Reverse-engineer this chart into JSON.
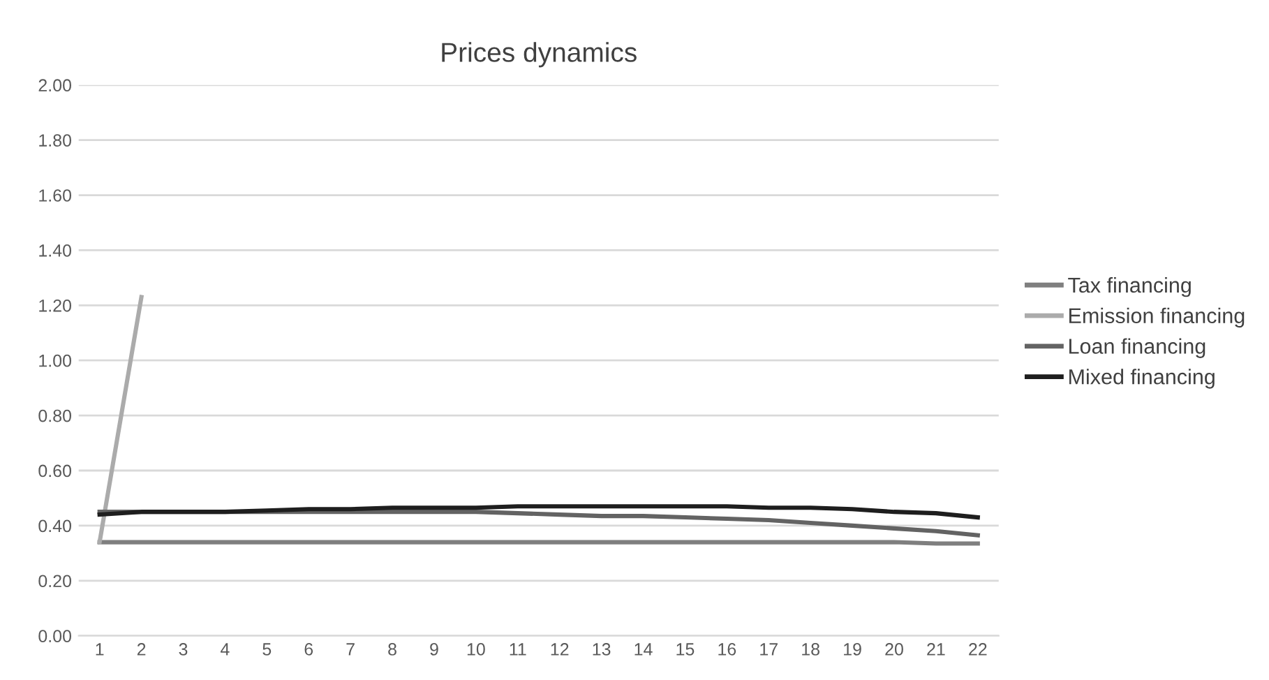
{
  "chart_data": {
    "type": "line",
    "title": "Prices dynamics",
    "categories": [
      "1",
      "2",
      "3",
      "4",
      "5",
      "6",
      "7",
      "8",
      "9",
      "10",
      "11",
      "12",
      "13",
      "14",
      "15",
      "16",
      "17",
      "18",
      "19",
      "20",
      "21",
      "22"
    ],
    "series": [
      {
        "name": "Tax financing",
        "color": "#7f7f7f",
        "values": [
          0.34,
          0.34,
          0.34,
          0.34,
          0.34,
          0.34,
          0.34,
          0.34,
          0.34,
          0.34,
          0.34,
          0.34,
          0.34,
          0.34,
          0.34,
          0.34,
          0.34,
          0.34,
          0.34,
          0.34,
          0.335,
          0.335
        ]
      },
      {
        "name": "Emission financing",
        "color": "#ababab",
        "values": [
          0.34,
          1.23,
          null,
          null,
          null,
          null,
          null,
          null,
          null,
          null,
          null,
          null,
          null,
          null,
          null,
          null,
          null,
          null,
          null,
          null,
          null,
          null
        ]
      },
      {
        "name": "Loan financing",
        "color": "#636363",
        "values": [
          0.45,
          0.45,
          0.45,
          0.45,
          0.45,
          0.45,
          0.45,
          0.45,
          0.45,
          0.45,
          0.445,
          0.44,
          0.435,
          0.435,
          0.43,
          0.425,
          0.42,
          0.41,
          0.4,
          0.39,
          0.38,
          0.365
        ]
      },
      {
        "name": "Mixed financing",
        "color": "#1e1e1e",
        "values": [
          0.44,
          0.45,
          0.45,
          0.45,
          0.455,
          0.46,
          0.46,
          0.465,
          0.465,
          0.465,
          0.47,
          0.47,
          0.47,
          0.47,
          0.47,
          0.47,
          0.465,
          0.465,
          0.46,
          0.45,
          0.445,
          0.43
        ]
      }
    ],
    "ylim": [
      0,
      2
    ],
    "yticks": [
      {
        "value": 0,
        "label": "0.00"
      },
      {
        "value": 0.2,
        "label": "0.20"
      },
      {
        "value": 0.4,
        "label": "0.40"
      },
      {
        "value": 0.6,
        "label": "0.60"
      },
      {
        "value": 0.8,
        "label": "0.80"
      },
      {
        "value": 1,
        "label": "1.00"
      },
      {
        "value": 1.2,
        "label": "1.20"
      },
      {
        "value": 1.4,
        "label": "1.40"
      },
      {
        "value": 1.6,
        "label": "1.60"
      },
      {
        "value": 1.8,
        "label": "1.80"
      },
      {
        "value": 2,
        "label": "2.00"
      }
    ],
    "grid": "y",
    "legend": "right",
    "marker": "none",
    "line_style": "solid"
  }
}
